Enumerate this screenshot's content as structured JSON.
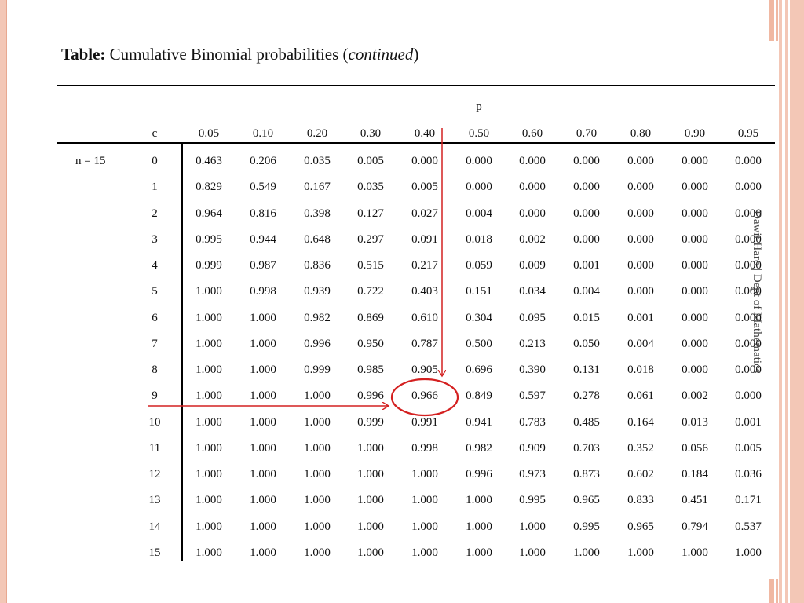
{
  "table": {
    "title_bold": "Table:",
    "title_normal": " Cumulative Binomial probabilities (",
    "title_italic": "continued",
    "title_end": ")",
    "p_header": "p",
    "c_header": "c",
    "n_label": "n = 15",
    "p_values": [
      "0.05",
      "0.10",
      "0.20",
      "0.30",
      "0.40",
      "0.50",
      "0.60",
      "0.70",
      "0.80",
      "0.90",
      "0.95"
    ],
    "rows": [
      {
        "c": "0",
        "v": [
          "0.463",
          "0.206",
          "0.035",
          "0.005",
          "0.000",
          "0.000",
          "0.000",
          "0.000",
          "0.000",
          "0.000",
          "0.000"
        ]
      },
      {
        "c": "1",
        "v": [
          "0.829",
          "0.549",
          "0.167",
          "0.035",
          "0.005",
          "0.000",
          "0.000",
          "0.000",
          "0.000",
          "0.000",
          "0.000"
        ]
      },
      {
        "c": "2",
        "v": [
          "0.964",
          "0.816",
          "0.398",
          "0.127",
          "0.027",
          "0.004",
          "0.000",
          "0.000",
          "0.000",
          "0.000",
          "0.000"
        ]
      },
      {
        "c": "3",
        "v": [
          "0.995",
          "0.944",
          "0.648",
          "0.297",
          "0.091",
          "0.018",
          "0.002",
          "0.000",
          "0.000",
          "0.000",
          "0.000"
        ]
      },
      {
        "c": "4",
        "v": [
          "0.999",
          "0.987",
          "0.836",
          "0.515",
          "0.217",
          "0.059",
          "0.009",
          "0.001",
          "0.000",
          "0.000",
          "0.000"
        ]
      },
      {
        "c": "5",
        "v": [
          "1.000",
          "0.998",
          "0.939",
          "0.722",
          "0.403",
          "0.151",
          "0.034",
          "0.004",
          "0.000",
          "0.000",
          "0.000"
        ]
      },
      {
        "c": "6",
        "v": [
          "1.000",
          "1.000",
          "0.982",
          "0.869",
          "0.610",
          "0.304",
          "0.095",
          "0.015",
          "0.001",
          "0.000",
          "0.000"
        ]
      },
      {
        "c": "7",
        "v": [
          "1.000",
          "1.000",
          "0.996",
          "0.950",
          "0.787",
          "0.500",
          "0.213",
          "0.050",
          "0.004",
          "0.000",
          "0.000"
        ]
      },
      {
        "c": "8",
        "v": [
          "1.000",
          "1.000",
          "0.999",
          "0.985",
          "0.905",
          "0.696",
          "0.390",
          "0.131",
          "0.018",
          "0.000",
          "0.000"
        ]
      },
      {
        "c": "9",
        "v": [
          "1.000",
          "1.000",
          "1.000",
          "0.996",
          "0.966",
          "0.849",
          "0.597",
          "0.278",
          "0.061",
          "0.002",
          "0.000"
        ]
      },
      {
        "c": "10",
        "v": [
          "1.000",
          "1.000",
          "1.000",
          "0.999",
          "0.991",
          "0.941",
          "0.783",
          "0.485",
          "0.164",
          "0.013",
          "0.001"
        ]
      },
      {
        "c": "11",
        "v": [
          "1.000",
          "1.000",
          "1.000",
          "1.000",
          "0.998",
          "0.982",
          "0.909",
          "0.703",
          "0.352",
          "0.056",
          "0.005"
        ]
      },
      {
        "c": "12",
        "v": [
          "1.000",
          "1.000",
          "1.000",
          "1.000",
          "1.000",
          "0.996",
          "0.973",
          "0.873",
          "0.602",
          "0.184",
          "0.036"
        ]
      },
      {
        "c": "13",
        "v": [
          "1.000",
          "1.000",
          "1.000",
          "1.000",
          "1.000",
          "1.000",
          "0.995",
          "0.965",
          "0.833",
          "0.451",
          "0.171"
        ]
      },
      {
        "c": "14",
        "v": [
          "1.000",
          "1.000",
          "1.000",
          "1.000",
          "1.000",
          "1.000",
          "1.000",
          "0.995",
          "0.965",
          "0.794",
          "0.537"
        ]
      },
      {
        "c": "15",
        "v": [
          "1.000",
          "1.000",
          "1.000",
          "1.000",
          "1.000",
          "1.000",
          "1.000",
          "1.000",
          "1.000",
          "1.000",
          "1.000"
        ]
      }
    ]
  },
  "highlight": {
    "row": "9",
    "column": "0.40",
    "value": "0.966",
    "color": "#d42020"
  },
  "watermark": "Dawit Haro | Dept of Mathematics",
  "colors": {
    "border_peach": "#f3c7b6",
    "border_peach_dark": "#f0b8a2",
    "annotation_red": "#d42020"
  }
}
